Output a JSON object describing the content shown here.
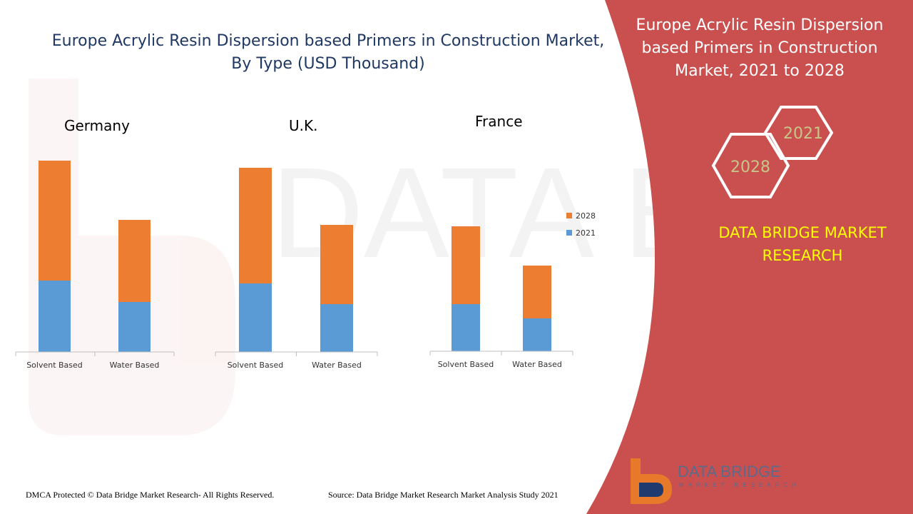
{
  "header": {
    "title_line1": "Europe Acrylic Resin Dispersion based Primers in Construction Market,",
    "title_line2": "By Type (USD Thousand)"
  },
  "side_panel": {
    "title": "Europe Acrylic Resin Dispersion based Primers in Construction Market, 2021 to 2028",
    "year_a": "2021",
    "year_b": "2028",
    "brand": "DATA BRIDGE MARKET RESEARCH"
  },
  "footer": {
    "copyright": "DMCA Protected © Data Bridge Market Research- All Rights Reserved.",
    "source": "Source: Data Bridge Market Research Market Analysis Study 2021"
  },
  "logo": {
    "name": "DATA BRIDGE",
    "tagline": "MARKET RESEARCH"
  },
  "colors": {
    "series_2021": "#5b9bd5",
    "series_2028": "#ed7d31",
    "panel": "#c9504e",
    "title": "#1f3864",
    "brand": "#ffff00"
  },
  "chart_data": [
    {
      "type": "bar",
      "stacked": true,
      "title": "Germany",
      "categories": [
        "Solvent Based",
        "Water Based"
      ],
      "series": [
        {
          "name": "2021",
          "values": [
            100,
            70
          ]
        },
        {
          "name": "2028",
          "values": [
            168,
            115
          ]
        }
      ],
      "legend": [],
      "ylim": [
        0,
        280
      ]
    },
    {
      "type": "bar",
      "stacked": true,
      "title": "U.K.",
      "categories": [
        "Solvent Based",
        "Water Based"
      ],
      "series": [
        {
          "name": "2021",
          "values": [
            96,
            67
          ]
        },
        {
          "name": "2028",
          "values": [
            162,
            111
          ]
        }
      ],
      "legend": [],
      "ylim": [
        0,
        280
      ]
    },
    {
      "type": "bar",
      "stacked": true,
      "title": "France",
      "categories": [
        "Solvent Based",
        "Water Based"
      ],
      "series": [
        {
          "name": "2021",
          "values": [
            66,
            46
          ]
        },
        {
          "name": "2028",
          "values": [
            109,
            74
          ]
        }
      ],
      "legend": [
        "2028",
        "2021"
      ],
      "ylim": [
        0,
        280
      ]
    }
  ]
}
